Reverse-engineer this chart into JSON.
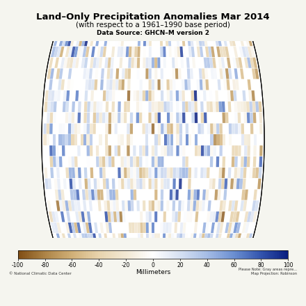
{
  "title": "Land–Only Precipitation Anomalies Mar 2014",
  "subtitle": "(with respect to a 1961–1990 base period)",
  "datasource": "Data Source: GHCN–M version 2",
  "colorbar_label": "Millimeters",
  "colorbar_ticks": [
    -100,
    -80,
    -60,
    -40,
    -20,
    0,
    20,
    40,
    60,
    80,
    100
  ],
  "vmin": -100,
  "vmax": 100,
  "bg_color": "#f5f5ef",
  "ocean_color": "#ffffff",
  "land_color": "#a0a0a0",
  "footer_left": "© National Climatic Data Center",
  "footer_right": "Please Note: Gray areas repre...\nMap Projection: Robinson",
  "cmap_nodes": [
    [
      0.0,
      [
        0.5,
        0.3,
        0.08
      ]
    ],
    [
      0.1,
      [
        0.68,
        0.52,
        0.28
      ]
    ],
    [
      0.2,
      [
        0.82,
        0.69,
        0.47
      ]
    ],
    [
      0.3,
      [
        0.91,
        0.83,
        0.68
      ]
    ],
    [
      0.4,
      [
        0.95,
        0.91,
        0.83
      ]
    ],
    [
      0.5,
      [
        1.0,
        1.0,
        1.0
      ]
    ],
    [
      0.6,
      [
        0.84,
        0.88,
        0.95
      ]
    ],
    [
      0.7,
      [
        0.65,
        0.74,
        0.9
      ]
    ],
    [
      0.8,
      [
        0.42,
        0.56,
        0.82
      ]
    ],
    [
      0.9,
      [
        0.2,
        0.33,
        0.68
      ]
    ],
    [
      1.0,
      [
        0.04,
        0.12,
        0.5
      ]
    ]
  ]
}
